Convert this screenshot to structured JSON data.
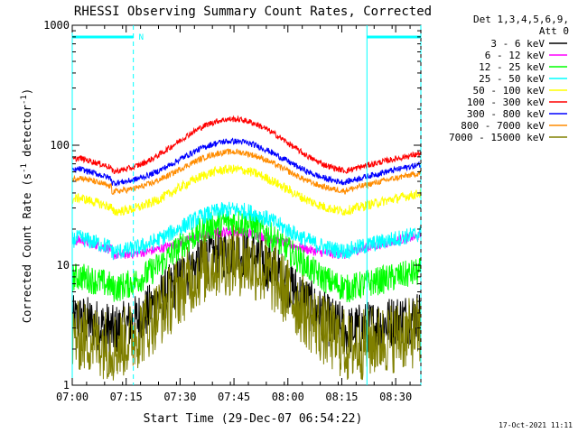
{
  "chart_data": {
    "type": "line",
    "title": "RHESSI Observing Summary Count Rates, Corrected",
    "xlabel": "Start Time (29-Dec-07 06:54:22)",
    "ylabel_main": "Corrected Count Rate (s",
    "ylabel_sup1": "-1",
    "ylabel_mid": " detector",
    "ylabel_sup2": "-1",
    "ylabel_end": ")",
    "y_scale": "log",
    "ylim": [
      1,
      1000
    ],
    "xlim_minutes": [
      6,
      103
    ],
    "x_ticks": [
      {
        "min": 6,
        "label": "07:00"
      },
      {
        "min": 21,
        "label": "07:15"
      },
      {
        "min": 36,
        "label": "07:30"
      },
      {
        "min": 51,
        "label": "07:45"
      },
      {
        "min": 66,
        "label": "08:00"
      },
      {
        "min": 81,
        "label": "08:15"
      },
      {
        "min": 96,
        "label": "08:30"
      }
    ],
    "y_ticks": [
      {
        "value": 1,
        "label": "1"
      },
      {
        "value": 10,
        "label": "10"
      },
      {
        "value": 100,
        "label": "100"
      },
      {
        "value": 1000,
        "label": "1000"
      }
    ],
    "legend_header": [
      "Det 1,3,4,5,6,9,",
      "Att 0"
    ],
    "night_label": "N",
    "night_bars": [
      {
        "start_min": 0,
        "end_min": 17
      },
      {
        "start_min": 82,
        "end_min": 97
      }
    ],
    "boundaries_min": [
      0,
      17,
      82,
      97
    ],
    "timestamp": "17-Oct-2021 11:11",
    "series": [
      {
        "name": "3 - 6 keV",
        "color": "#000000",
        "base": 2.6,
        "peak": 13,
        "noise": 0.22
      },
      {
        "name": "6 - 12 keV",
        "color": "#ff00ff",
        "base": 12,
        "peak": 19,
        "noise": 0.04
      },
      {
        "name": "12 - 25 keV",
        "color": "#00ff00",
        "base": 6,
        "peak": 23,
        "noise": 0.12
      },
      {
        "name": "25 - 50 keV",
        "color": "#00ffff",
        "base": 12.5,
        "peak": 29,
        "noise": 0.07
      },
      {
        "name": "50 - 100 keV",
        "color": "#ffff00",
        "base": 27,
        "peak": 63,
        "noise": 0.04
      },
      {
        "name": "100 - 300 keV",
        "color": "#ff0000",
        "base": 58,
        "peak": 165,
        "noise": 0.025
      },
      {
        "name": "300 - 800 keV",
        "color": "#0000ff",
        "base": 47,
        "peak": 108,
        "noise": 0.025
      },
      {
        "name": "800 - 7000 keV",
        "color": "#ff8c00",
        "base": 40,
        "peak": 88,
        "noise": 0.025
      },
      {
        "name": "7000 - 15000 keV",
        "color": "#808000",
        "base": 1.9,
        "peak": 11,
        "noise": 0.3
      }
    ]
  }
}
